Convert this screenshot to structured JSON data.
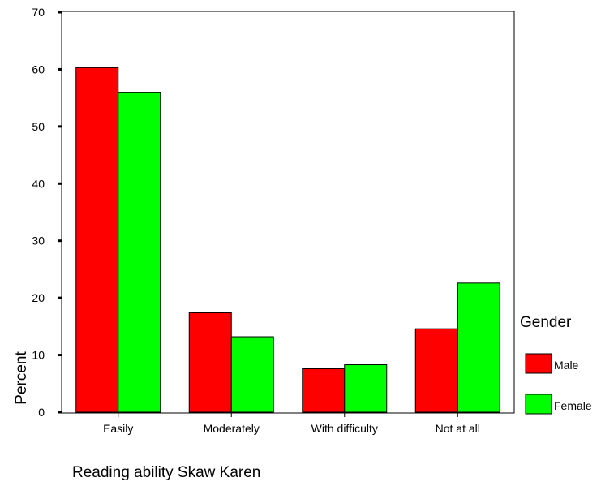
{
  "chart_data": {
    "type": "bar",
    "categories": [
      "Easily",
      "Moderately",
      "With difficulty",
      "Not at all"
    ],
    "series": [
      {
        "name": "Male",
        "values": [
          60.3,
          17.4,
          7.6,
          14.6
        ],
        "color": "#ff0000"
      },
      {
        "name": "Female",
        "values": [
          55.9,
          13.2,
          8.3,
          22.6
        ],
        "color": "#00ff00"
      }
    ],
    "xlabel": "Reading ability Skaw Karen",
    "ylabel": "Percent",
    "ylim": [
      0,
      70
    ],
    "yticks": [
      "0",
      "10",
      "20",
      "30",
      "40",
      "50",
      "60",
      "70"
    ],
    "legend": {
      "title": "Gender",
      "placement": "right"
    },
    "grid": false
  }
}
